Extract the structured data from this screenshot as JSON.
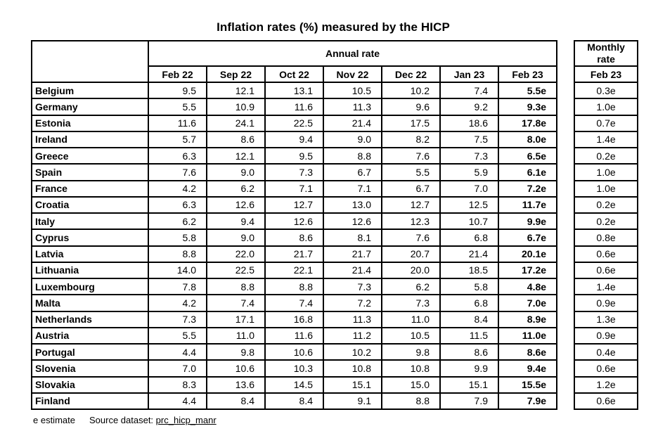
{
  "title": "Inflation rates (%) measured by the HICP",
  "footer": {
    "estimate_note": "e estimate",
    "source_label": "Source dataset:",
    "source_link": "prc_hicp_manr"
  },
  "colors": {
    "text": "#000000",
    "border": "#000000",
    "background": "#ffffff"
  },
  "chart_data": {
    "type": "table",
    "title": "Inflation rates (%) measured by the HICP",
    "group_headers": {
      "annual": "Annual rate",
      "monthly": "Monthly rate"
    },
    "annual_columns": [
      "Feb 22",
      "Sep 22",
      "Oct 22",
      "Nov 22",
      "Dec 22",
      "Jan 23",
      "Feb 23"
    ],
    "monthly_column": "Feb 23",
    "value_note_suffix": "e",
    "rows": [
      {
        "country": "Belgium",
        "annual": [
          "9.5",
          "12.1",
          "13.1",
          "10.5",
          "10.2",
          "7.4",
          "5.5e"
        ],
        "monthly": "0.3e"
      },
      {
        "country": "Germany",
        "annual": [
          "5.5",
          "10.9",
          "11.6",
          "11.3",
          "9.6",
          "9.2",
          "9.3e"
        ],
        "monthly": "1.0e"
      },
      {
        "country": "Estonia",
        "annual": [
          "11.6",
          "24.1",
          "22.5",
          "21.4",
          "17.5",
          "18.6",
          "17.8e"
        ],
        "monthly": "0.7e"
      },
      {
        "country": "Ireland",
        "annual": [
          "5.7",
          "8.6",
          "9.4",
          "9.0",
          "8.2",
          "7.5",
          "8.0e"
        ],
        "monthly": "1.4e"
      },
      {
        "country": "Greece",
        "annual": [
          "6.3",
          "12.1",
          "9.5",
          "8.8",
          "7.6",
          "7.3",
          "6.5e"
        ],
        "monthly": "0.2e"
      },
      {
        "country": "Spain",
        "annual": [
          "7.6",
          "9.0",
          "7.3",
          "6.7",
          "5.5",
          "5.9",
          "6.1e"
        ],
        "monthly": "1.0e"
      },
      {
        "country": "France",
        "annual": [
          "4.2",
          "6.2",
          "7.1",
          "7.1",
          "6.7",
          "7.0",
          "7.2e"
        ],
        "monthly": "1.0e"
      },
      {
        "country": "Croatia",
        "annual": [
          "6.3",
          "12.6",
          "12.7",
          "13.0",
          "12.7",
          "12.5",
          "11.7e"
        ],
        "monthly": "0.2e"
      },
      {
        "country": "Italy",
        "annual": [
          "6.2",
          "9.4",
          "12.6",
          "12.6",
          "12.3",
          "10.7",
          "9.9e"
        ],
        "monthly": "0.2e"
      },
      {
        "country": "Cyprus",
        "annual": [
          "5.8",
          "9.0",
          "8.6",
          "8.1",
          "7.6",
          "6.8",
          "6.7e"
        ],
        "monthly": "0.8e"
      },
      {
        "country": "Latvia",
        "annual": [
          "8.8",
          "22.0",
          "21.7",
          "21.7",
          "20.7",
          "21.4",
          "20.1e"
        ],
        "monthly": "0.6e"
      },
      {
        "country": "Lithuania",
        "annual": [
          "14.0",
          "22.5",
          "22.1",
          "21.4",
          "20.0",
          "18.5",
          "17.2e"
        ],
        "monthly": "0.6e"
      },
      {
        "country": "Luxembourg",
        "annual": [
          "7.8",
          "8.8",
          "8.8",
          "7.3",
          "6.2",
          "5.8",
          "4.8e"
        ],
        "monthly": "1.4e"
      },
      {
        "country": "Malta",
        "annual": [
          "4.2",
          "7.4",
          "7.4",
          "7.2",
          "7.3",
          "6.8",
          "7.0e"
        ],
        "monthly": "0.9e"
      },
      {
        "country": "Netherlands",
        "annual": [
          "7.3",
          "17.1",
          "16.8",
          "11.3",
          "11.0",
          "8.4",
          "8.9e"
        ],
        "monthly": "1.3e"
      },
      {
        "country": "Austria",
        "annual": [
          "5.5",
          "11.0",
          "11.6",
          "11.2",
          "10.5",
          "11.5",
          "11.0e"
        ],
        "monthly": "0.9e"
      },
      {
        "country": "Portugal",
        "annual": [
          "4.4",
          "9.8",
          "10.6",
          "10.2",
          "9.8",
          "8.6",
          "8.6e"
        ],
        "monthly": "0.4e"
      },
      {
        "country": "Slovenia",
        "annual": [
          "7.0",
          "10.6",
          "10.3",
          "10.8",
          "10.8",
          "9.9",
          "9.4e"
        ],
        "monthly": "0.6e"
      },
      {
        "country": "Slovakia",
        "annual": [
          "8.3",
          "13.6",
          "14.5",
          "15.1",
          "15.0",
          "15.1",
          "15.5e"
        ],
        "monthly": "1.2e"
      },
      {
        "country": "Finland",
        "annual": [
          "4.4",
          "8.4",
          "8.4",
          "9.1",
          "8.8",
          "7.9",
          "7.9e"
        ],
        "monthly": "0.6e"
      }
    ]
  }
}
